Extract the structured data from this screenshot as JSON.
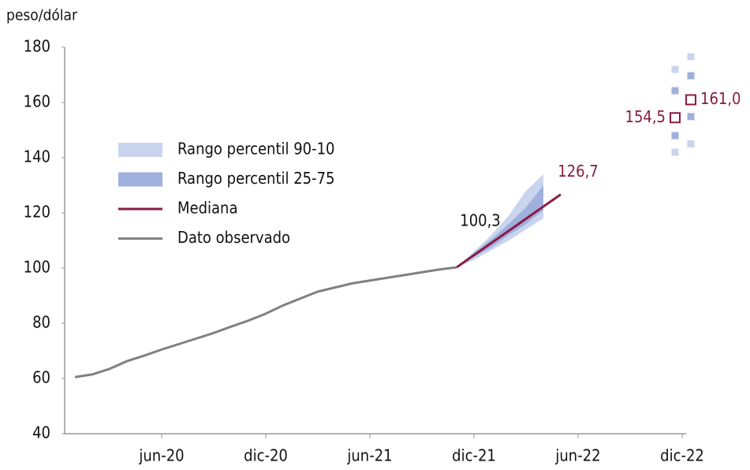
{
  "chart_data": {
    "type": "line",
    "y_label": "peso/dólar",
    "categories": [
      null,
      null,
      null,
      null,
      null,
      "jun-20",
      null,
      null,
      null,
      null,
      null,
      "dic-20",
      null,
      null,
      null,
      null,
      null,
      "jun-21",
      null,
      null,
      null,
      null,
      null,
      "dic-21",
      null,
      null,
      null,
      null,
      null,
      "jun-22",
      null,
      null,
      null,
      null,
      null,
      "dic-22"
    ],
    "ylim": [
      40,
      180
    ],
    "yticks": [
      40,
      60,
      80,
      100,
      120,
      140,
      160,
      180
    ],
    "bands": [
      {
        "name": "Rango percentil 90-10",
        "color": "#c9d5ee",
        "high": [
          null,
          null,
          null,
          null,
          null,
          null,
          null,
          null,
          null,
          null,
          null,
          null,
          null,
          null,
          null,
          null,
          null,
          null,
          null,
          null,
          null,
          null,
          100.3,
          106,
          112,
          119,
          128,
          134,
          null,
          null,
          null,
          null,
          null,
          null,
          null,
          null
        ],
        "low": [
          null,
          null,
          null,
          null,
          null,
          null,
          null,
          null,
          null,
          null,
          null,
          null,
          null,
          null,
          null,
          null,
          null,
          null,
          null,
          null,
          null,
          null,
          100.3,
          103,
          106.5,
          110,
          114,
          118,
          null,
          null,
          null,
          null,
          null,
          null,
          null,
          null
        ]
      },
      {
        "name": "Rango percentil 25-75",
        "color": "#9fb0dc",
        "high": [
          null,
          null,
          null,
          null,
          null,
          null,
          null,
          null,
          null,
          null,
          null,
          null,
          null,
          null,
          null,
          null,
          null,
          null,
          null,
          null,
          null,
          null,
          100.3,
          105.5,
          110.5,
          116,
          122,
          130,
          null,
          null,
          null,
          null,
          null,
          null,
          null,
          null
        ],
        "low": [
          null,
          null,
          null,
          null,
          null,
          null,
          null,
          null,
          null,
          null,
          null,
          null,
          null,
          null,
          null,
          null,
          null,
          null,
          null,
          null,
          null,
          null,
          100.3,
          104,
          107.5,
          112,
          116,
          121,
          null,
          null,
          null,
          null,
          null,
          null,
          null,
          null
        ]
      }
    ],
    "series": [
      {
        "name": "Mediana",
        "color": "#8b1a44",
        "label_color": "#8b1a44",
        "values": [
          null,
          null,
          null,
          null,
          null,
          null,
          null,
          null,
          null,
          null,
          null,
          null,
          null,
          null,
          null,
          null,
          null,
          null,
          null,
          null,
          null,
          null,
          100.3,
          104.7,
          109.1,
          113.5,
          117.9,
          122.3,
          126.7,
          null,
          null,
          null,
          null,
          null,
          null,
          null
        ],
        "value_labels": [
          null,
          null,
          null,
          null,
          null,
          null,
          null,
          null,
          null,
          null,
          null,
          null,
          null,
          null,
          null,
          null,
          null,
          null,
          null,
          null,
          null,
          null,
          null,
          null,
          null,
          null,
          null,
          null,
          "126,7",
          null,
          null,
          null,
          null,
          null,
          null,
          null
        ]
      },
      {
        "name": "Dato observado",
        "color": "#808080",
        "label_color": "#111111",
        "values": [
          60.5,
          61.5,
          63.5,
          66.3,
          68.3,
          70.5,
          72.5,
          74.5,
          76.5,
          78.8,
          81,
          83.5,
          86.5,
          89,
          91.5,
          93,
          94.5,
          95.5,
          96.5,
          97.5,
          98.5,
          99.5,
          100.3,
          null,
          null,
          null,
          null,
          null,
          null,
          null,
          null,
          null,
          null,
          null,
          null,
          null
        ],
        "value_labels": [
          null,
          null,
          null,
          null,
          null,
          null,
          null,
          null,
          null,
          null,
          null,
          null,
          null,
          null,
          null,
          null,
          null,
          null,
          null,
          null,
          null,
          null,
          "100,3",
          null,
          null,
          null,
          null,
          null,
          null,
          null,
          null,
          null,
          null,
          null,
          null,
          null
        ]
      }
    ],
    "end_points": [
      {
        "median": 154.5,
        "value_label": "154,5",
        "p25": 148,
        "p75": 164.3,
        "p10": 142,
        "p90": 172
      },
      {
        "median": 161.0,
        "value_label": "161,0",
        "p25": 154.9,
        "p75": 169.7,
        "p10": 145,
        "p90": 176.6
      }
    ]
  }
}
